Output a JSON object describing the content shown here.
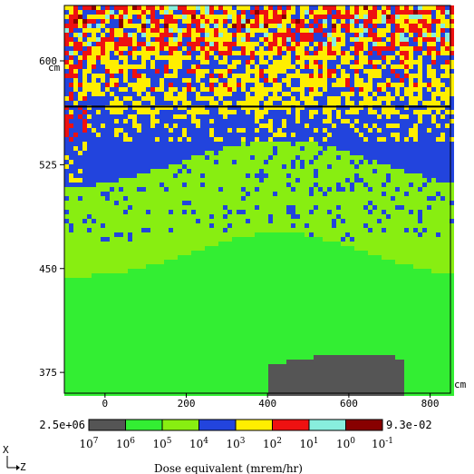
{
  "chart_data": {
    "type": "heatmap",
    "title": "",
    "x_axis": {
      "unit": "cm",
      "ticks": [
        0,
        200,
        400,
        600,
        800
      ],
      "range": [
        -100,
        850
      ]
    },
    "y_axis": {
      "unit": "cm",
      "ticks": [
        375,
        450,
        525,
        600
      ],
      "range": [
        360,
        640
      ]
    },
    "horizontal_line_y": 567,
    "colorbar": {
      "label": "Dose equivalent (mrem/hr)",
      "max_label": "2.5e+06",
      "min_label": "9.3e-02",
      "bin_colors": [
        "#555555",
        "#33ee33",
        "#88ee11",
        "#2244dd",
        "#ffee00",
        "#ee1111",
        "#88eedd",
        "#880000"
      ],
      "bin_edge_labels": [
        {
          "base": "10",
          "exp": "7"
        },
        {
          "base": "10",
          "exp": "6"
        },
        {
          "base": "10",
          "exp": "5"
        },
        {
          "base": "10",
          "exp": "4"
        },
        {
          "base": "10",
          "exp": "3"
        },
        {
          "base": "10",
          "exp": "2"
        },
        {
          "base": "10",
          "exp": "1"
        },
        {
          "base": "10",
          "exp": "0"
        },
        {
          "base": "10",
          "exp": "-1"
        }
      ]
    },
    "axis_triad": {
      "vertical": "X",
      "horizontal": "Z"
    },
    "regions_description_levels": {
      "bottom_center_max": 6,
      "lower_band": 5,
      "middle_band": 4.5,
      "upper_band": 3,
      "top_band": 1.5
    }
  }
}
